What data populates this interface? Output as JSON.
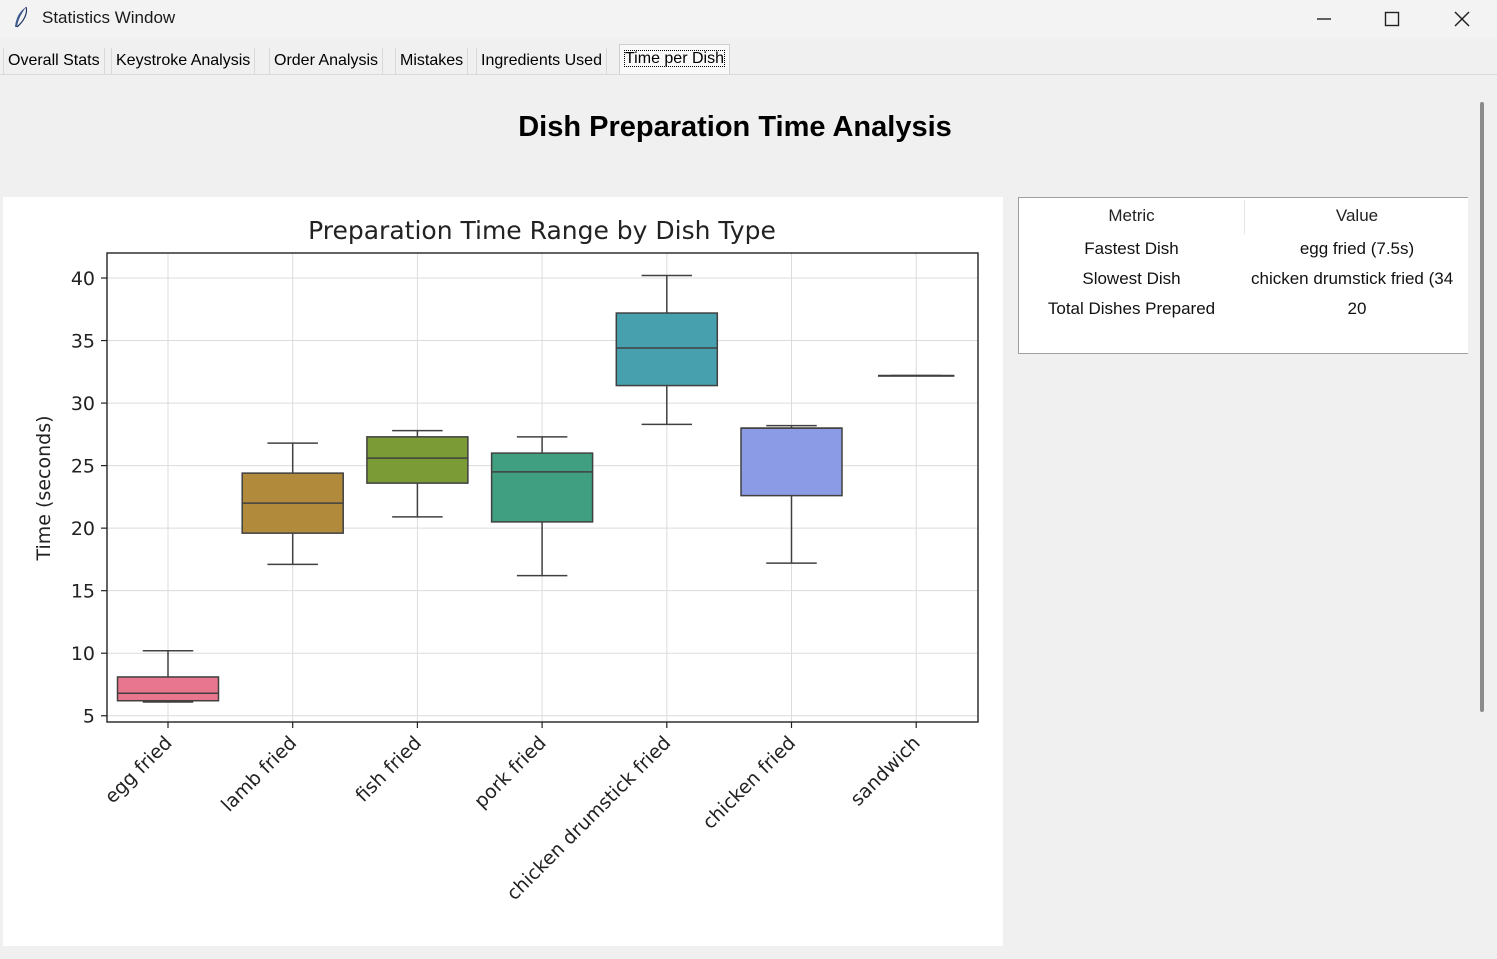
{
  "window": {
    "title": "Statistics Window",
    "icon": "feather-icon",
    "controls": [
      "minimize-icon",
      "maximize-icon",
      "close-icon"
    ]
  },
  "tabs": [
    {
      "label": "Overall Stats",
      "active": false
    },
    {
      "label": "Keystroke Analysis",
      "active": false
    },
    {
      "label": "Order Analysis",
      "active": false
    },
    {
      "label": "Mistakes",
      "active": false
    },
    {
      "label": "Ingredients Used",
      "active": false
    },
    {
      "label": "Time per Dish",
      "active": true
    }
  ],
  "page": {
    "heading": "Dish Preparation Time Analysis"
  },
  "stats_table": {
    "headers": [
      "Metric",
      "Value"
    ],
    "rows": [
      {
        "metric": "Fastest Dish",
        "value": "egg fried (7.5s)"
      },
      {
        "metric": "Slowest Dish",
        "value": "chicken drumstick fried (34"
      },
      {
        "metric": "Total Dishes Prepared",
        "value": "20"
      }
    ]
  },
  "chart_data": {
    "type": "box",
    "title": "Preparation Time Range by Dish Type",
    "xlabel": "",
    "ylabel": "Time (seconds)",
    "ylim": [
      4.5,
      42
    ],
    "yticks": [
      5,
      10,
      15,
      20,
      25,
      30,
      35,
      40
    ],
    "grid": true,
    "categories": [
      "egg fried",
      "lamb fried",
      "fish fried",
      "pork fried",
      "chicken drumstick fried",
      "chicken fried",
      "sandwich"
    ],
    "boxes": [
      {
        "name": "egg fried",
        "min": 6.1,
        "q1": 6.2,
        "median": 6.8,
        "q3": 8.1,
        "max": 10.2,
        "color": "#e8768e"
      },
      {
        "name": "lamb fried",
        "min": 17.1,
        "q1": 19.6,
        "median": 22.0,
        "q3": 24.4,
        "max": 26.8,
        "color": "#b18b3b"
      },
      {
        "name": "fish fried",
        "min": 20.9,
        "q1": 23.6,
        "median": 25.6,
        "q3": 27.3,
        "max": 27.8,
        "color": "#7a9b36"
      },
      {
        "name": "pork fried",
        "min": 16.2,
        "q1": 20.5,
        "median": 24.5,
        "q3": 26.0,
        "max": 27.3,
        "color": "#3f9f80"
      },
      {
        "name": "chicken drumstick fried",
        "min": 28.3,
        "q1": 31.4,
        "median": 34.4,
        "q3": 37.2,
        "max": 40.2,
        "color": "#47a0ae"
      },
      {
        "name": "chicken fried",
        "min": 17.2,
        "q1": 22.6,
        "median": 28.0,
        "q3": 28.0,
        "max": 28.2,
        "color": "#8c9be6"
      },
      {
        "name": "sandwich",
        "min": 32.2,
        "q1": 32.2,
        "median": 32.2,
        "q3": 32.2,
        "max": 32.2,
        "color": "#d770c8"
      }
    ]
  }
}
